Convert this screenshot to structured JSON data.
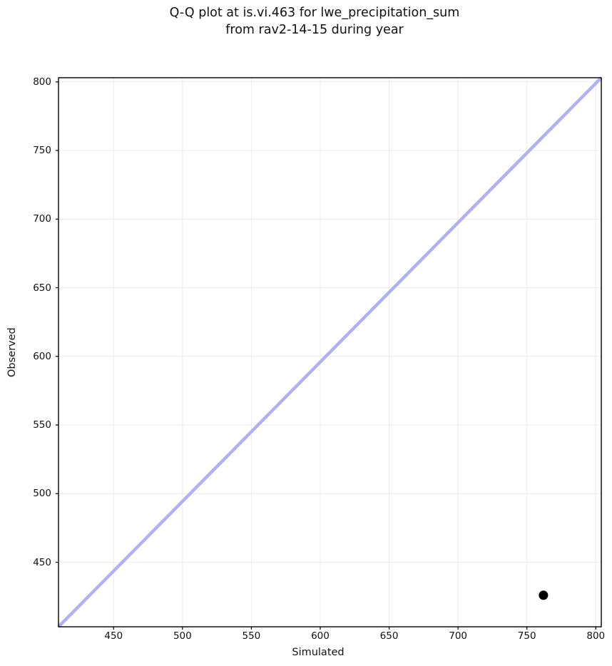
{
  "chart_data": {
    "type": "scatter",
    "title_line1": "Q-Q plot at is.vi.463 for lwe_precipitation_sum",
    "title_line2": "from rav2-14-15 during year",
    "xlabel": "Simulated",
    "ylabel": "Observed",
    "x_ticks": [
      450,
      500,
      550,
      600,
      650,
      700,
      750,
      800
    ],
    "y_ticks": [
      450,
      500,
      550,
      600,
      650,
      700,
      750,
      800
    ],
    "xlim": [
      410,
      804
    ],
    "ylim": [
      403,
      803
    ],
    "grid": true,
    "legend": "none",
    "points": [
      {
        "simulated": 762,
        "observed": 426
      }
    ],
    "reference_line": {
      "kind": "identity y=x",
      "from": [
        410,
        403
      ],
      "to": [
        804,
        803
      ]
    },
    "colors": {
      "point": "#000000",
      "reference_line": "#b1b1f2",
      "grid": "#ececec",
      "spine": "#000000",
      "background": "#ffffff"
    }
  }
}
